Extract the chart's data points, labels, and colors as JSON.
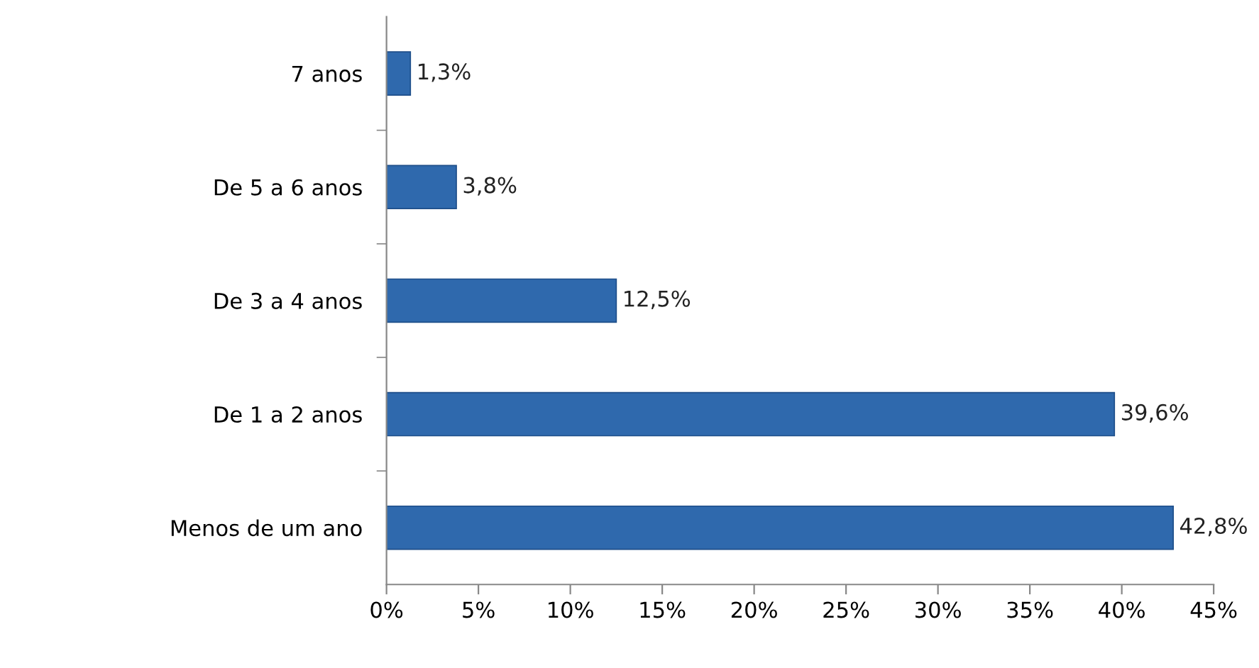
{
  "chart_data": {
    "type": "bar",
    "orientation": "horizontal",
    "categories": [
      "7 anos",
      "De 5 a 6 anos",
      "De 3 a 4 anos",
      "De 1 a 2 anos",
      "Menos de um ano"
    ],
    "values": [
      1.3,
      3.8,
      12.5,
      39.6,
      42.8
    ],
    "value_labels": [
      "1,3%",
      "3,8%",
      "12,5%",
      "39,6%",
      "42,8%"
    ],
    "color": "#2f69ad",
    "xlim": [
      0,
      45
    ],
    "xticks": [
      {
        "value": 0,
        "label": "0%"
      },
      {
        "value": 5,
        "label": "5%"
      },
      {
        "value": 10,
        "label": "10%"
      },
      {
        "value": 15,
        "label": "15%"
      },
      {
        "value": 20,
        "label": "20%"
      },
      {
        "value": 25,
        "label": "25%"
      },
      {
        "value": 30,
        "label": "30%"
      },
      {
        "value": 35,
        "label": "35%"
      },
      {
        "value": 40,
        "label": "40%"
      },
      {
        "value": 45,
        "label": "45%"
      }
    ],
    "grid": false,
    "legend": false
  }
}
